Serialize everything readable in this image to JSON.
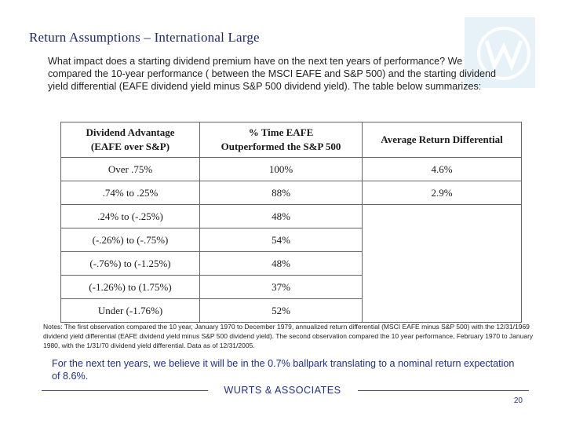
{
  "slide": {
    "title": "Return Assumptions – International Large",
    "intro": "What impact does a starting dividend premium have on the next ten years of performance? We compared  the 10-year performance ( between the MSCI EAFE and S&P 500) and the starting dividend yield differential (EAFE dividend yield minus S&P 500 dividend yield). The table below summarizes:",
    "table": {
      "headers": [
        [
          "Dividend Advantage",
          "(EAFE over S&P)"
        ],
        [
          "% Time EAFE",
          "Outperformed the S&P 500"
        ],
        [
          "Average Return Differential"
        ]
      ],
      "rows": [
        {
          "advantage": "Over .75%",
          "pct_time": "100%",
          "avg_diff": "4.6%"
        },
        {
          "advantage": ".74% to .25%",
          "pct_time": "88%",
          "avg_diff": "2.9%"
        },
        {
          "advantage": ".24% to (-.25%)",
          "pct_time": "48%"
        },
        {
          "advantage": "(-.26%) to (-.75%)",
          "pct_time": "54%"
        },
        {
          "advantage": "(-.76%) to (-1.25%)",
          "pct_time": "48%"
        },
        {
          "advantage": "(-1.26%) to (1.75%)",
          "pct_time": "37%"
        },
        {
          "advantage": "Under (-1.76%)",
          "pct_time": "52%"
        }
      ]
    },
    "notes": "Notes: The first observation compared the 10 year, January 1970 to December 1979, annualized return differential (MSCI EAFE minus S&P 500) with the 12/31/1969 dividend yield differential (EAFE dividend yield minus S&P 500 dividend yield).  The second observation compared the 10 year performance, February 1970 to January 1980, with the 1/31/70 dividend yield differential.  Data as of 12/31/2005.",
    "conclusion": "For the next ten years, we believe it will be in the 0.7% ballpark translating to a nominal return expectation of 8.6%.",
    "footer": {
      "brand": "WURTS & ASSOCIATES",
      "page": "20"
    },
    "colors": {
      "title": "#1f2a6b",
      "accent": "#1f2f8a",
      "logo_bg": "#e6f2f8"
    },
    "logo_icon": "w-logo-icon"
  }
}
